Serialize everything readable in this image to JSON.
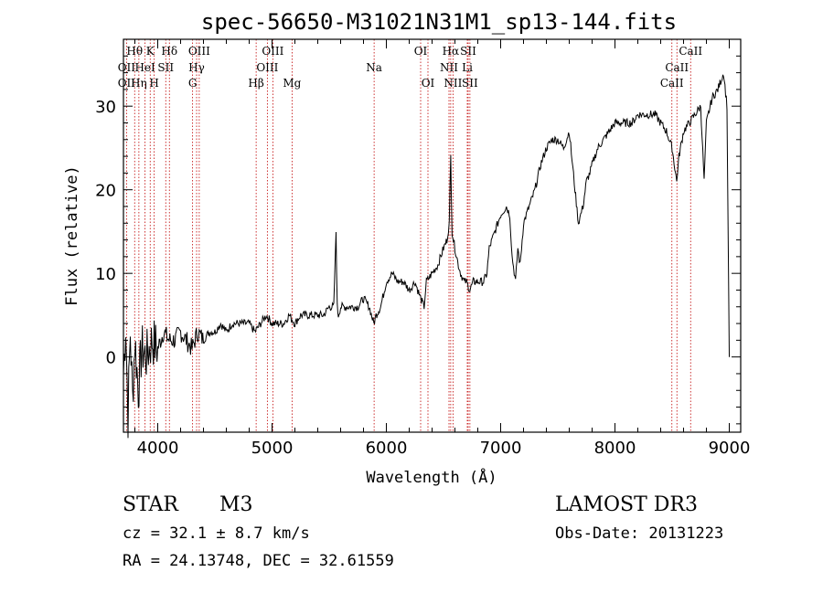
{
  "chart_data": {
    "type": "line",
    "title": "spec-56650-M31021N31M1_sp13-144.fits",
    "xlabel": "Wavelength (Å)",
    "ylabel": "Flux (relative)",
    "xlim": [
      3700,
      9100
    ],
    "ylim": [
      -9,
      38
    ],
    "xticks": [
      4000,
      5000,
      6000,
      7000,
      8000,
      9000
    ],
    "yticks": [
      0,
      10,
      20,
      30
    ],
    "series": [
      {
        "name": "flux",
        "x": [
          3700,
          3720,
          3740,
          3760,
          3780,
          3800,
          3830,
          3860,
          3900,
          3950,
          4000,
          4050,
          4100,
          4150,
          4200,
          4250,
          4300,
          4350,
          4400,
          4450,
          4500,
          4550,
          4600,
          4650,
          4700,
          4750,
          4800,
          4850,
          4900,
          4950,
          5000,
          5050,
          5100,
          5150,
          5200,
          5250,
          5300,
          5350,
          5400,
          5450,
          5500,
          5540,
          5560,
          5570,
          5580,
          5600,
          5650,
          5700,
          5750,
          5800,
          5850,
          5890,
          5910,
          5950,
          6000,
          6050,
          6100,
          6150,
          6200,
          6250,
          6300,
          6330,
          6350,
          6400,
          6450,
          6500,
          6530,
          6550,
          6563,
          6575,
          6600,
          6630,
          6650,
          6680,
          6700,
          6730,
          6760,
          6800,
          6850,
          6880,
          6900,
          6950,
          7000,
          7050,
          7080,
          7100,
          7130,
          7150,
          7170,
          7200,
          7250,
          7300,
          7350,
          7400,
          7450,
          7500,
          7550,
          7600,
          7650,
          7680,
          7700,
          7720,
          7750,
          7780,
          7800,
          7850,
          7900,
          7950,
          8000,
          8050,
          8100,
          8150,
          8200,
          8250,
          8300,
          8350,
          8400,
          8450,
          8500,
          8540,
          8560,
          8600,
          8650,
          8700,
          8750,
          8780,
          8800,
          8850,
          8900,
          8950,
          8980,
          9000
        ],
        "y": [
          -2,
          4,
          -7,
          3,
          -5,
          2,
          -4,
          1,
          0,
          2,
          1,
          3,
          2,
          2,
          3,
          2,
          1,
          3,
          2,
          3,
          3,
          4,
          3,
          4,
          4,
          4,
          4,
          3,
          4,
          5,
          4,
          4,
          4,
          5,
          4,
          5,
          5,
          5,
          5,
          5,
          6,
          6,
          15,
          6,
          5,
          6,
          6,
          6,
          6,
          7,
          6,
          4,
          5,
          6,
          9,
          10,
          9,
          9,
          8,
          9,
          7,
          6,
          9,
          10,
          11,
          13,
          14,
          16,
          24,
          15,
          13,
          11,
          10,
          9,
          9,
          8,
          9,
          9,
          9,
          10,
          13,
          15,
          17,
          18,
          17,
          12,
          9,
          13,
          11,
          16,
          18,
          20,
          23,
          25,
          26,
          26,
          25,
          27,
          20,
          16,
          17,
          18,
          21,
          22,
          23,
          25,
          26,
          27,
          28,
          28,
          28,
          28,
          29,
          29,
          29,
          29,
          28,
          27,
          25,
          21,
          24,
          27,
          28,
          29,
          30,
          21,
          28,
          31,
          32,
          34,
          30,
          0
        ]
      }
    ],
    "line_markers": [
      {
        "label": "Hθ",
        "x": 3798,
        "row": 0
      },
      {
        "label": "OII",
        "x": 3727,
        "row": 1
      },
      {
        "label": "OII",
        "x": 3727,
        "row": 2
      },
      {
        "label": "Hη",
        "x": 3835,
        "row": 2
      },
      {
        "label": "K",
        "x": 3934,
        "row": 0
      },
      {
        "label": "HeI",
        "x": 3889,
        "row": 1
      },
      {
        "label": "H",
        "x": 3969,
        "row": 2
      },
      {
        "label": "SII",
        "x": 4070,
        "row": 1
      },
      {
        "label": "Hδ",
        "x": 4102,
        "row": 0
      },
      {
        "label": "OIII",
        "x": 4363,
        "row": 0
      },
      {
        "label": "Hγ",
        "x": 4340,
        "row": 1
      },
      {
        "label": "G",
        "x": 4305,
        "row": 2
      },
      {
        "label": "Hβ",
        "x": 4861,
        "row": 2
      },
      {
        "label": "OIII",
        "x": 5007,
        "row": 0
      },
      {
        "label": "OIII",
        "x": 4959,
        "row": 1
      },
      {
        "label": "Mg",
        "x": 5175,
        "row": 2
      },
      {
        "label": "Na",
        "x": 5893,
        "row": 1
      },
      {
        "label": "OI",
        "x": 6300,
        "row": 0
      },
      {
        "label": "OI",
        "x": 6364,
        "row": 2
      },
      {
        "label": "Hα",
        "x": 6563,
        "row": 0
      },
      {
        "label": "SII",
        "x": 6716,
        "row": 0
      },
      {
        "label": "NII",
        "x": 6548,
        "row": 1
      },
      {
        "label": "Li",
        "x": 6708,
        "row": 1
      },
      {
        "label": "NII",
        "x": 6583,
        "row": 2
      },
      {
        "label": "SII",
        "x": 6731,
        "row": 2
      },
      {
        "label": "CaII",
        "x": 8662,
        "row": 0
      },
      {
        "label": "CaII",
        "x": 8542,
        "row": 1
      },
      {
        "label": "CaII",
        "x": 8498,
        "row": 2
      }
    ]
  },
  "info": {
    "class": "STAR",
    "subclass": "M3",
    "survey": "LAMOST DR3",
    "cz": "cz = 32.1 ± 8.7 km/s",
    "obs_date": "Obs-Date: 20131223",
    "radec": "RA =  24.13748, DEC =  32.61559"
  },
  "colors": {
    "axis": "#000000",
    "line": "#000000",
    "marker": "#c00000"
  }
}
